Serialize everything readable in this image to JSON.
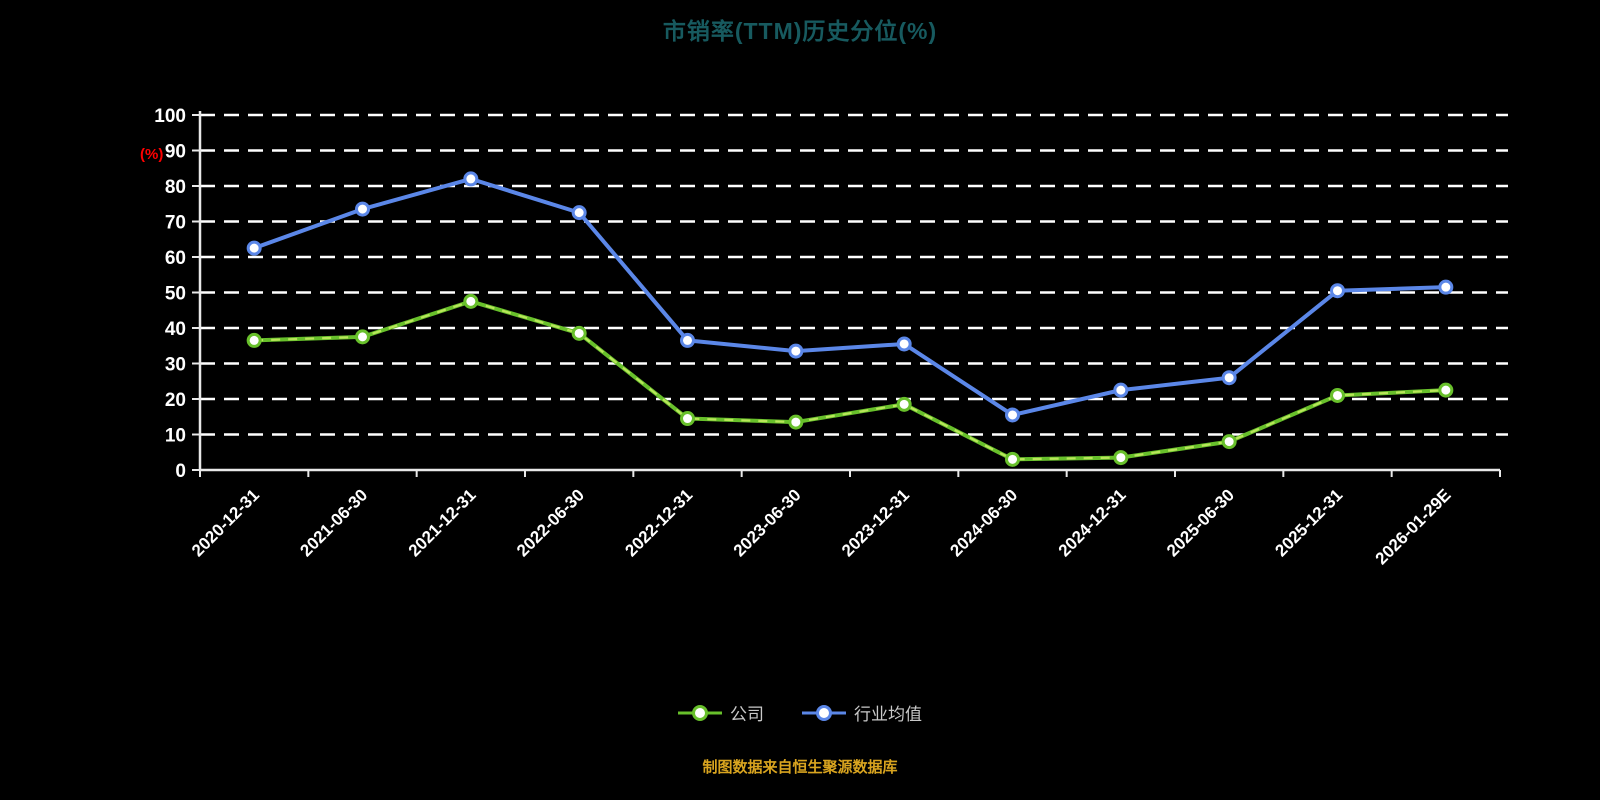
{
  "title": "市销率(TTM)历史分位(%)",
  "footnote": "制图数据来自恒生聚源数据库",
  "chart_data": {
    "type": "line",
    "title": "市销率(TTM)历史分位(%)",
    "ylabel": "(%)",
    "ylim": [
      0,
      100
    ],
    "ytick_step": 10,
    "grid": "dashed-horizontal-white",
    "legend_position": "bottom",
    "background": "#000000",
    "categories": [
      "2020-12-31",
      "2021-06-30",
      "2021-12-31",
      "2022-06-30",
      "2022-12-31",
      "2023-06-30",
      "2023-12-31",
      "2024-06-30",
      "2024-12-31",
      "2025-06-30",
      "2025-12-31",
      "2026-01-29E"
    ],
    "series": [
      {
        "id": "company",
        "name": "公司",
        "color": "#68c02b",
        "overlay_dash_color": "#b9e65a",
        "values": [
          36.5,
          37.5,
          47.5,
          38.5,
          14.5,
          13.5,
          18.5,
          3,
          3.5,
          8,
          21,
          22.5
        ]
      },
      {
        "id": "industry-average",
        "name": "行业均值",
        "color": "#5b87e8",
        "values": [
          62.5,
          73.5,
          82,
          72.5,
          36.5,
          33.5,
          35.5,
          15.5,
          22.5,
          26,
          50.5,
          51.5
        ]
      }
    ],
    "axis_color": "#e8e8e8",
    "gridline_color": "#ffffff",
    "tick_label_color": "#ffffff",
    "ylabel_color": "#ff0000",
    "title_color": "#175a5f",
    "legend_text_color": "#c9c9c9",
    "footnote_color": "#d9a41f"
  }
}
